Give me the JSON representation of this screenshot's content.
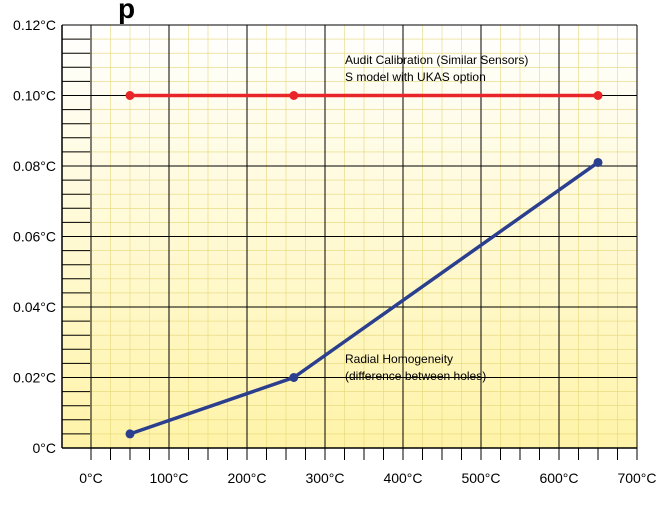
{
  "chart_data": {
    "type": "line",
    "title_fragment": "p",
    "x_ticks": [
      "0°C",
      "100°C",
      "200°C",
      "300°C",
      "400°C",
      "500°C",
      "600°C",
      "700°C"
    ],
    "y_ticks": [
      "0°C",
      "0.02°C",
      "0.04°C",
      "0.06°C",
      "0.08°C",
      "0.10°C",
      "0.12°C"
    ],
    "xlim": [
      0,
      700
    ],
    "ylim": [
      0,
      0.12
    ],
    "grid": true,
    "background_gradient": [
      "#fff3a8",
      "#ffffff"
    ],
    "series": [
      {
        "color": "#e8262a",
        "x": [
          50,
          260,
          650
        ],
        "y": [
          0.1,
          0.1,
          0.1
        ],
        "annotation": [
          "Audit Calibration (Similar Sensors)",
          "S model with UKAS option"
        ]
      },
      {
        "color": "#2b3f8f",
        "x": [
          50,
          260,
          650
        ],
        "y": [
          0.004,
          0.02,
          0.081
        ],
        "annotation": [
          "Radial Homogeneity",
          "(difference between holes)"
        ]
      }
    ]
  }
}
